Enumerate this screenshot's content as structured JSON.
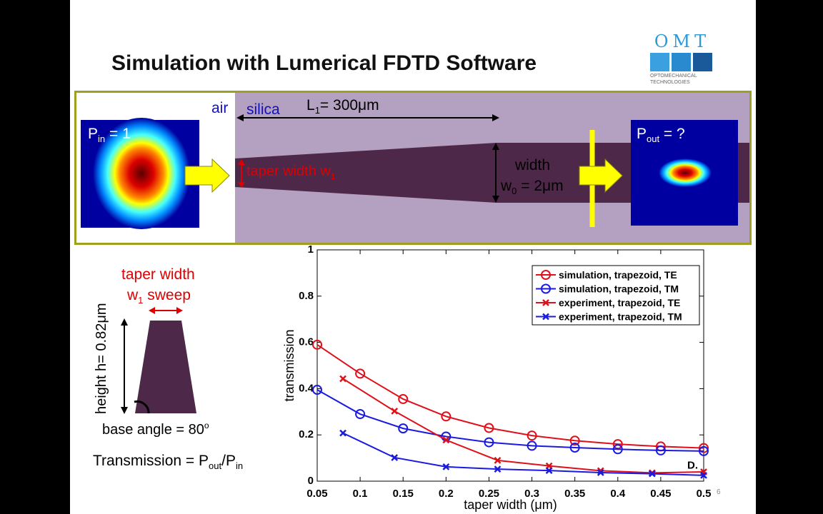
{
  "title": "Simulation with Lumerical FDTD Software",
  "logo": {
    "letters": "OMT",
    "line1": "OPTOMECHANICAL",
    "line2": "TECHNOLOGIES"
  },
  "diagram": {
    "air": "air",
    "silica": "silica",
    "length": "L",
    "length_sub": "1",
    "length_val": "= 300μm",
    "p_in": "P",
    "p_in_sub": "in",
    "p_in_val": " = 1",
    "taper": "taper width w",
    "taper_sub": "1",
    "width": "width",
    "w0": "w",
    "w0_sub": "0",
    "w0_val": " = 2μm",
    "p_out": "P",
    "p_out_sub": "out",
    "p_out_val": " = ?"
  },
  "cross_section": {
    "line1": "taper width",
    "line2": "w",
    "line2_sub": "1",
    "line2_rest": " sweep",
    "height": "height h= 0.82μm",
    "angle": "base angle = 80",
    "angle_sup": "o"
  },
  "formula": {
    "text": "Transmission = P",
    "sub1": "out",
    "mid": "/P",
    "sub2": "in"
  },
  "page_number": "6",
  "chart_data": {
    "type": "line",
    "xlabel": "taper width (μm)",
    "ylabel": "transmission",
    "xlim": [
      0.05,
      0.5
    ],
    "ylim": [
      0,
      1
    ],
    "xticks": [
      "0.05",
      "0.1",
      "0.15",
      "0.2",
      "0.25",
      "0.3",
      "0.35",
      "0.4",
      "0.45",
      "0.5"
    ],
    "yticks": [
      "0",
      "0.2",
      "0.4",
      "0.6",
      "0.8",
      "1"
    ],
    "legend_position": "top-right",
    "annotation": "D.",
    "series": [
      {
        "name": "simulation, trapezoid, TE",
        "color": "#e0101a",
        "marker": "circle",
        "x": [
          0.05,
          0.1,
          0.15,
          0.2,
          0.25,
          0.3,
          0.35,
          0.4,
          0.45,
          0.5
        ],
        "y": [
          0.59,
          0.465,
          0.355,
          0.28,
          0.23,
          0.197,
          0.175,
          0.16,
          0.15,
          0.143
        ]
      },
      {
        "name": "simulation, trapezoid, TM",
        "color": "#1a1ae0",
        "marker": "circle",
        "x": [
          0.05,
          0.1,
          0.15,
          0.2,
          0.25,
          0.3,
          0.35,
          0.4,
          0.45,
          0.5
        ],
        "y": [
          0.395,
          0.29,
          0.228,
          0.193,
          0.168,
          0.153,
          0.145,
          0.138,
          0.133,
          0.13
        ]
      },
      {
        "name": "experiment, trapezoid, TE",
        "color": "#e0101a",
        "marker": "x",
        "x": [
          0.08,
          0.14,
          0.2,
          0.26,
          0.32,
          0.38,
          0.44,
          0.5
        ],
        "y": [
          0.443,
          0.303,
          0.178,
          0.09,
          0.066,
          0.045,
          0.036,
          0.04
        ]
      },
      {
        "name": "experiment, trapezoid, TM",
        "color": "#1a1ae0",
        "marker": "x",
        "x": [
          0.08,
          0.14,
          0.2,
          0.26,
          0.32,
          0.38,
          0.44,
          0.5
        ],
        "y": [
          0.208,
          0.102,
          0.062,
          0.052,
          0.046,
          0.037,
          0.032,
          0.025
        ]
      }
    ]
  }
}
